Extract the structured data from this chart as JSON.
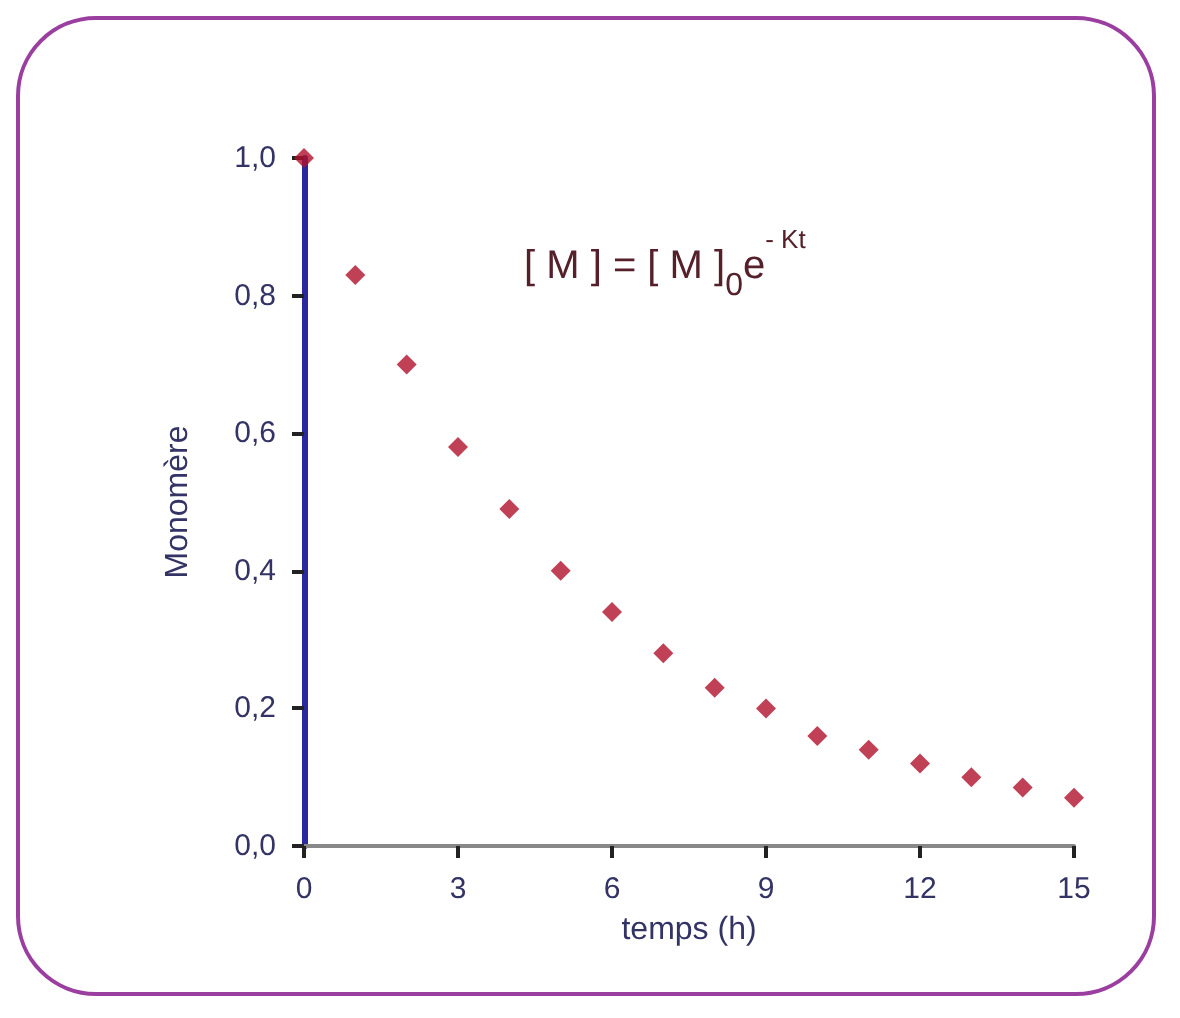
{
  "chart_data": {
    "type": "scatter",
    "xlabel": "temps (h)",
    "ylabel": "Monomère",
    "annotations": [
      "[ M ] = [ M ]$_{0}$e$^{- Kt}$"
    ],
    "x": [
      0,
      1,
      2,
      3,
      4,
      5,
      6,
      7,
      8,
      9,
      10,
      11,
      12,
      13,
      14,
      15
    ],
    "series": [
      {
        "color": "#b0102c",
        "values": [
          1.0,
          0.83,
          0.7,
          0.58,
          0.49,
          0.4,
          0.34,
          0.28,
          0.23,
          0.2,
          0.16,
          0.14,
          0.12,
          0.1,
          0.085,
          0.07
        ]
      }
    ],
    "xlim": [
      0,
      15
    ],
    "xticks": [
      0,
      3,
      6,
      9,
      12,
      15
    ],
    "ylim": [
      0,
      1.0
    ],
    "yticks": [
      {
        "value": 0,
        "label": "0,0"
      },
      {
        "value": 0.2,
        "label": "0,2"
      },
      {
        "value": 0.4,
        "label": "0,4"
      },
      {
        "value": 0.6,
        "label": "0,6"
      },
      {
        "value": 0.8,
        "label": "0,8"
      },
      {
        "value": 1.0,
        "label": "1,0"
      }
    ],
    "marker": "diamond"
  }
}
